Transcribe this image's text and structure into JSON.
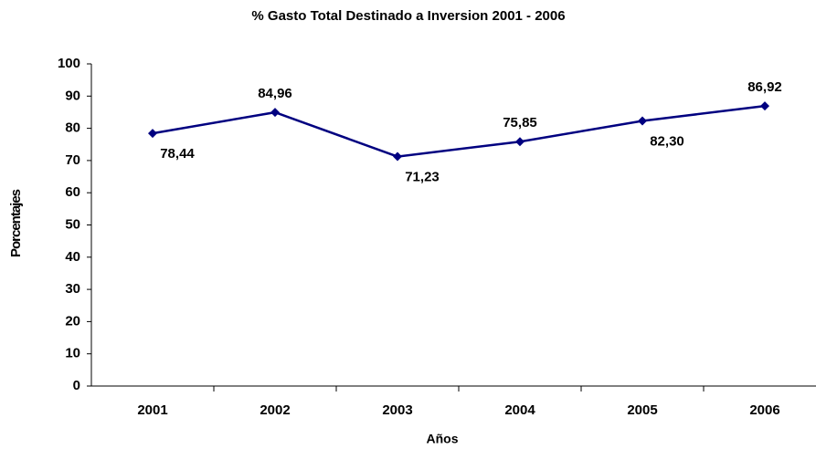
{
  "chart_data": {
    "type": "line",
    "title": "% Gasto Total Destinado a Inversion 2001 - 2006",
    "x_label": "Años",
    "y_label": "Porcentajes",
    "categories": [
      "2001",
      "2002",
      "2003",
      "2004",
      "2005",
      "2006"
    ],
    "series": [
      {
        "name": "% Gasto Total Destinado a Inversion",
        "color": "#000080",
        "values": [
          78.44,
          84.96,
          71.23,
          75.85,
          82.3,
          86.92
        ],
        "value_labels": [
          "78,44",
          "84,96",
          "71,23",
          "75,85",
          "82,30",
          "86,92"
        ]
      }
    ],
    "ylim": [
      0,
      100
    ],
    "yticks": [
      0,
      10,
      20,
      30,
      40,
      50,
      60,
      70,
      80,
      90,
      100
    ],
    "grid": false
  }
}
